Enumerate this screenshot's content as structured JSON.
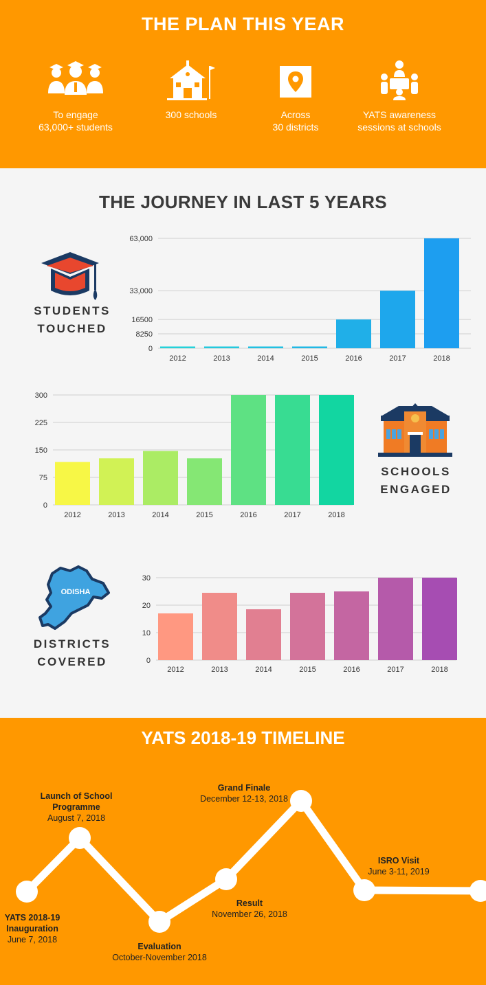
{
  "plan": {
    "title": "THE PLAN THIS YEAR",
    "items": [
      {
        "icon": "students-icon",
        "text": "To engage\n63,000+ students"
      },
      {
        "icon": "school-icon",
        "text": "300 schools"
      },
      {
        "icon": "location-pin-icon",
        "text": "Across\n30 districts"
      },
      {
        "icon": "awareness-session-icon",
        "text": "YATS awareness\nsessions at schools"
      }
    ]
  },
  "journey": {
    "title": "THE JOURNEY IN LAST 5 YEARS",
    "students_label": "STUDENTS\nTOUCHED",
    "schools_label": "SCHOOLS\nENGAGED",
    "districts_label": "DISTRICTS\nCOVERED",
    "map_label": "ODISHA"
  },
  "chart_data": [
    {
      "type": "bar",
      "categories": [
        "2012",
        "2013",
        "2014",
        "2015",
        "2016",
        "2017",
        "2018"
      ],
      "values": [
        1000,
        1000,
        1000,
        1000,
        16500,
        33000,
        63000
      ],
      "yticks": [
        "0",
        "8250",
        "16500",
        "33,000",
        "63,000"
      ],
      "ytick_values": [
        0,
        8250,
        16500,
        33000,
        63000
      ],
      "ylim": [
        0,
        63000
      ],
      "grid": true,
      "colors": [
        "#25d1d9",
        "#1d9ef0"
      ]
    },
    {
      "type": "bar",
      "categories": [
        "2012",
        "2013",
        "2014",
        "2015",
        "2016",
        "2017",
        "2018"
      ],
      "values": [
        117,
        127,
        147,
        127,
        300,
        300,
        300
      ],
      "yticks": [
        "0",
        "75",
        "150",
        "225",
        "300"
      ],
      "ytick_values": [
        0,
        75,
        150,
        225,
        300
      ],
      "ylim": [
        0,
        300
      ],
      "grid": true,
      "colors": [
        "#f7f746",
        "#12d6a1"
      ]
    },
    {
      "type": "bar",
      "categories": [
        "2012",
        "2013",
        "2014",
        "2015",
        "2016",
        "2017",
        "2018"
      ],
      "values": [
        17,
        24.5,
        18.5,
        24.5,
        25,
        30,
        30
      ],
      "yticks": [
        "0",
        "10",
        "20",
        "30"
      ],
      "ytick_values": [
        0,
        10,
        20,
        30
      ],
      "ylim": [
        0,
        30
      ],
      "grid": true,
      "colors": [
        "#ff9881",
        "#a64db2"
      ]
    }
  ],
  "timeline": {
    "title": "YATS 2018-19 TIMELINE",
    "events": [
      {
        "title": "YATS 2018-19\nInauguration",
        "date": "June 7, 2018"
      },
      {
        "title": "Launch of School\nProgramme",
        "date": "August 7, 2018"
      },
      {
        "title": "Evaluation",
        "date": "October-November 2018"
      },
      {
        "title": "Result",
        "date": "November 26, 2018"
      },
      {
        "title": "Grand Finale",
        "date": "December 12-13, 2018"
      },
      {
        "title": "ISRO Visit",
        "date": "June 3-11, 2019"
      }
    ]
  }
}
